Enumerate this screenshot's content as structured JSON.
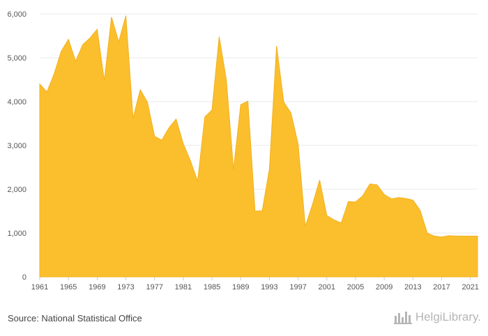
{
  "source": "Source: National Statistical Office",
  "logo": {
    "name": "HelgiLibrary.",
    "icon": "helgi-library-logo-icon"
  },
  "chart_data": {
    "type": "area",
    "color": "#fbbf2d",
    "grid": true,
    "xlim": [
      1961,
      2022
    ],
    "ylim": [
      0,
      6000
    ],
    "yticks": [
      0,
      1000,
      2000,
      3000,
      4000,
      5000,
      6000
    ],
    "ytick_labels": [
      "0",
      "1,000",
      "2,000",
      "3,000",
      "4,000",
      "5,000",
      "6,000"
    ],
    "xticks": [
      1961,
      1965,
      1969,
      1973,
      1977,
      1981,
      1985,
      1989,
      1993,
      1997,
      2001,
      2005,
      2009,
      2013,
      2017,
      2021
    ],
    "xtick_labels": [
      "1961",
      "1965",
      "1969",
      "1973",
      "1977",
      "1981",
      "1985",
      "1989",
      "1993",
      "1997",
      "2001",
      "2005",
      "2009",
      "2013",
      "2017",
      "2021"
    ],
    "x": [
      1961,
      1962,
      1963,
      1964,
      1965,
      1966,
      1967,
      1968,
      1969,
      1970,
      1971,
      1972,
      1973,
      1974,
      1975,
      1976,
      1977,
      1978,
      1979,
      1980,
      1981,
      1982,
      1983,
      1984,
      1985,
      1986,
      1987,
      1988,
      1989,
      1990,
      1991,
      1992,
      1993,
      1994,
      1995,
      1996,
      1997,
      1998,
      1999,
      2000,
      2001,
      2002,
      2003,
      2004,
      2005,
      2006,
      2007,
      2008,
      2009,
      2010,
      2011,
      2012,
      2013,
      2014,
      2015,
      2016,
      2017,
      2018,
      2019,
      2020,
      2021,
      2022
    ],
    "values": [
      4400,
      4220,
      4630,
      5150,
      5420,
      4920,
      5300,
      5450,
      5650,
      4480,
      5930,
      5360,
      5960,
      3620,
      4270,
      3990,
      3210,
      3120,
      3400,
      3600,
      3040,
      2650,
      2180,
      3650,
      3810,
      5480,
      4500,
      2450,
      3930,
      4010,
      1500,
      1510,
      2460,
      5270,
      3990,
      3740,
      3030,
      1150,
      1650,
      2210,
      1400,
      1300,
      1230,
      1720,
      1710,
      1850,
      2120,
      2100,
      1880,
      1780,
      1810,
      1790,
      1750,
      1520,
      1000,
      930,
      910,
      940,
      930,
      930,
      930,
      930
    ]
  }
}
